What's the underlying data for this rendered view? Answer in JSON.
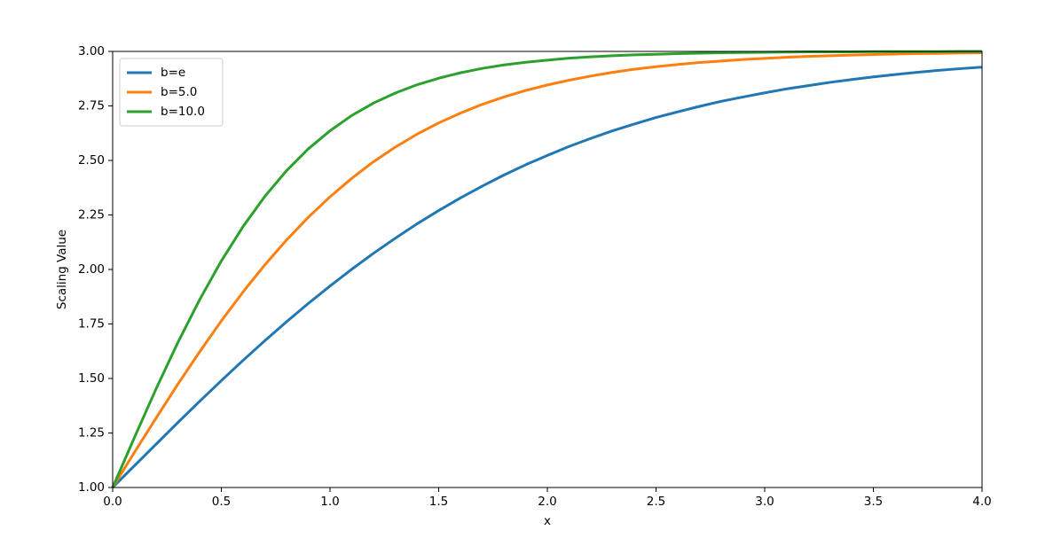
{
  "chart_data": {
    "type": "line",
    "xlabel": "x",
    "ylabel": "Scaling Value",
    "x": [
      0,
      0.1,
      0.2,
      0.3,
      0.4,
      0.5,
      0.6,
      0.7,
      0.8,
      0.9,
      1,
      1.1,
      1.2,
      1.3,
      1.4,
      1.5,
      1.6,
      1.7,
      1.8,
      1.9,
      2,
      2.1,
      2.2,
      2.3,
      2.4,
      2.5,
      2.6,
      2.7,
      2.8,
      2.9,
      3,
      3.1,
      3.2,
      3.3,
      3.4,
      3.5,
      3.6,
      3.7,
      3.8,
      3.9,
      4
    ],
    "series": [
      {
        "name": "b=e",
        "color": "#1f77b4",
        "values": [
          1,
          1.1,
          1.199,
          1.298,
          1.395,
          1.49,
          1.583,
          1.673,
          1.76,
          1.844,
          1.924,
          2.001,
          2.074,
          2.143,
          2.209,
          2.27,
          2.328,
          2.382,
          2.433,
          2.48,
          2.523,
          2.564,
          2.601,
          2.636,
          2.667,
          2.697,
          2.723,
          2.748,
          2.771,
          2.791,
          2.81,
          2.828,
          2.843,
          2.858,
          2.871,
          2.883,
          2.894,
          2.904,
          2.913,
          2.921,
          2.928
        ]
      },
      {
        "name": "b=5.0",
        "color": "#ff7f0e",
        "values": [
          1,
          1.161,
          1.319,
          1.474,
          1.622,
          1.764,
          1.897,
          2.021,
          2.135,
          2.239,
          2.333,
          2.418,
          2.494,
          2.561,
          2.62,
          2.672,
          2.717,
          2.757,
          2.791,
          2.821,
          2.846,
          2.868,
          2.887,
          2.904,
          2.918,
          2.93,
          2.94,
          2.949,
          2.956,
          2.963,
          2.968,
          2.973,
          2.977,
          2.98,
          2.983,
          2.986,
          2.988,
          2.99,
          2.991,
          2.993,
          2.994
        ]
      },
      {
        "name": "b=10.0",
        "color": "#2ca02c",
        "values": [
          1,
          1.229,
          1.453,
          1.665,
          1.861,
          2.039,
          2.197,
          2.335,
          2.453,
          2.553,
          2.636,
          2.706,
          2.763,
          2.809,
          2.847,
          2.877,
          2.902,
          2.922,
          2.938,
          2.95,
          2.96,
          2.969,
          2.975,
          2.98,
          2.984,
          2.987,
          2.99,
          2.992,
          2.994,
          2.995,
          2.996,
          2.997,
          2.998,
          2.998,
          2.998,
          2.999,
          2.999,
          2.999,
          2.999,
          3,
          3
        ]
      }
    ],
    "xlim": [
      0,
      4
    ],
    "ylim": [
      1,
      3
    ],
    "xticks": [
      {
        "value": 0,
        "label": "0.0"
      },
      {
        "value": 0.5,
        "label": "0.5"
      },
      {
        "value": 1,
        "label": "1.0"
      },
      {
        "value": 1.5,
        "label": "1.5"
      },
      {
        "value": 2,
        "label": "2.0"
      },
      {
        "value": 2.5,
        "label": "2.5"
      },
      {
        "value": 3,
        "label": "3.0"
      },
      {
        "value": 3.5,
        "label": "3.5"
      },
      {
        "value": 4,
        "label": "4.0"
      }
    ],
    "yticks": [
      {
        "value": 1,
        "label": "1.00"
      },
      {
        "value": 1.25,
        "label": "1.25"
      },
      {
        "value": 1.5,
        "label": "1.50"
      },
      {
        "value": 1.75,
        "label": "1.75"
      },
      {
        "value": 2,
        "label": "2.00"
      },
      {
        "value": 2.25,
        "label": "2.25"
      },
      {
        "value": 2.5,
        "label": "2.50"
      },
      {
        "value": 2.75,
        "label": "2.75"
      },
      {
        "value": 3,
        "label": "3.00"
      }
    ],
    "legend": "upper left",
    "grid": false
  }
}
